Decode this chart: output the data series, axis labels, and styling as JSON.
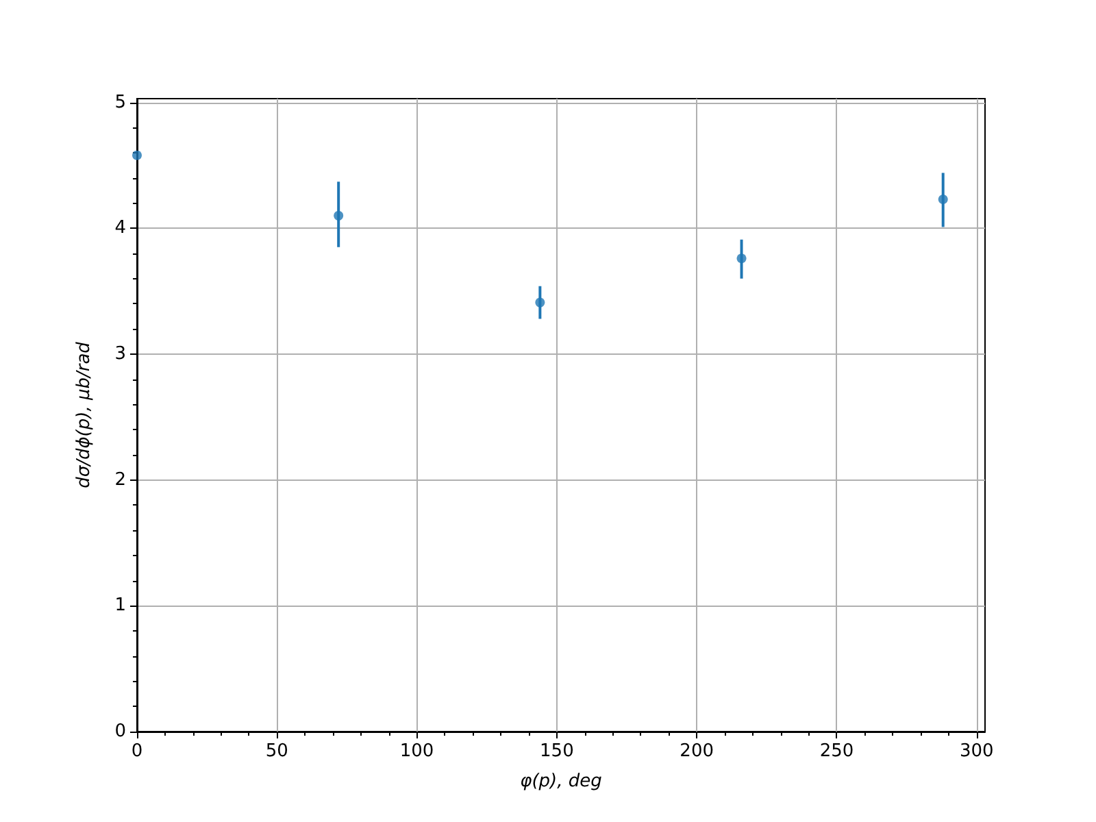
{
  "chart_data": {
    "type": "scatter",
    "xlabel": "φ(p), deg",
    "ylabel": "dσ/dϕ(p), μb/rad",
    "x": [
      0,
      72,
      144,
      216,
      288
    ],
    "series": [
      {
        "color": "#1f77b4",
        "values": [
          4.58,
          4.1,
          3.41,
          3.76,
          4.23
        ],
        "errors": [
          null,
          [
            3.85,
            4.37
          ],
          [
            3.28,
            3.54
          ],
          [
            3.6,
            3.91
          ],
          [
            4.01,
            4.44
          ]
        ]
      }
    ],
    "xlim": [
      0,
      303
    ],
    "ylim": [
      0,
      5.03
    ],
    "xticks": [
      0,
      50,
      100,
      150,
      200,
      250,
      300
    ],
    "yticks": [
      0,
      1,
      2,
      3,
      4,
      5
    ],
    "grid": true,
    "marker": "circle"
  }
}
